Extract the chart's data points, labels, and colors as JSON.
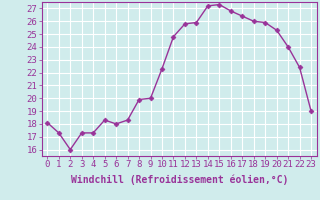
{
  "x": [
    0,
    1,
    2,
    3,
    4,
    5,
    6,
    7,
    8,
    9,
    10,
    11,
    12,
    13,
    14,
    15,
    16,
    17,
    18,
    19,
    20,
    21,
    22,
    23
  ],
  "y": [
    18.1,
    17.3,
    16.0,
    17.3,
    17.3,
    18.3,
    18.0,
    18.3,
    19.9,
    20.0,
    22.3,
    24.8,
    25.8,
    25.9,
    27.2,
    27.3,
    26.8,
    26.4,
    26.0,
    25.9,
    25.3,
    24.0,
    22.4,
    19.0
  ],
  "line_color": "#993399",
  "marker": "D",
  "markersize": 2.5,
  "linewidth": 1.0,
  "xlabel": "Windchill (Refroidissement éolien,°C)",
  "xlabel_fontsize": 7,
  "bg_color": "#d0ecec",
  "grid_color": "#ffffff",
  "tick_label_fontsize": 6.5,
  "tick_color": "#993399",
  "xlim": [
    -0.5,
    23.5
  ],
  "ylim": [
    15.5,
    27.5
  ],
  "yticks": [
    16,
    17,
    18,
    19,
    20,
    21,
    22,
    23,
    24,
    25,
    26,
    27
  ],
  "xticks": [
    0,
    1,
    2,
    3,
    4,
    5,
    6,
    7,
    8,
    9,
    10,
    11,
    12,
    13,
    14,
    15,
    16,
    17,
    18,
    19,
    20,
    21,
    22,
    23
  ]
}
